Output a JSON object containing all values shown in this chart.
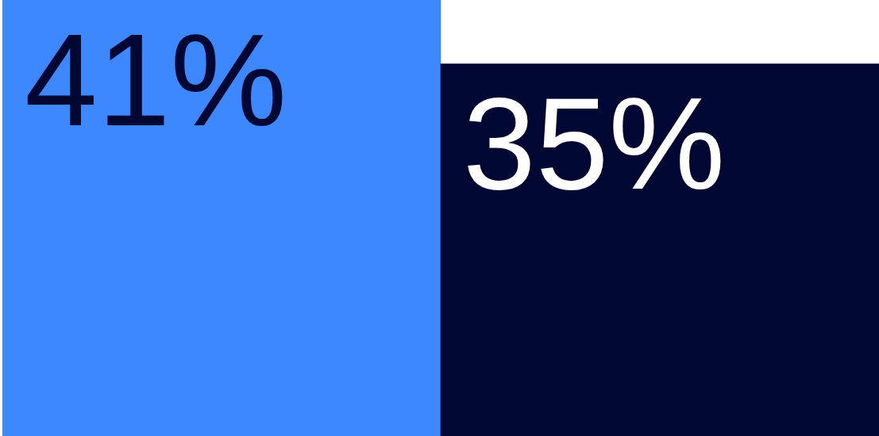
{
  "chart_data": {
    "type": "bar",
    "categories": [
      null,
      null
    ],
    "values": [
      41,
      35
    ],
    "value_labels": [
      "41%",
      "35%"
    ],
    "colors": [
      "#3d88ff",
      "#000733"
    ],
    "tick_labels": false
  }
}
